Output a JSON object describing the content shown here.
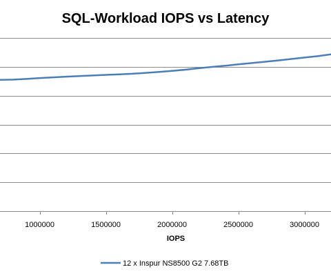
{
  "chart_data": {
    "type": "line",
    "title": "SQL-Workload IOPS vs Latency",
    "xlabel": "IOPS",
    "ylabel": "",
    "xlim": [
      700000,
      3200000
    ],
    "ylim": [
      0,
      1.2
    ],
    "x_ticks": [
      1000000,
      1500000,
      2000000,
      2500000,
      3000000
    ],
    "x_tick_labels": [
      "1000000",
      "1500000",
      "2000000",
      "2500000",
      "3000000"
    ],
    "y_gridlines": [
      0,
      0.2,
      0.4,
      0.6,
      0.8,
      1.0,
      1.2
    ],
    "grid": "horizontal",
    "legend": "bottom",
    "series": [
      {
        "name": "12 x Inspur NS8500 G2 7.68TB",
        "color": "#4a7ebb",
        "x": [
          700000,
          800000,
          900000,
          1000000,
          1100000,
          1200000,
          1300000,
          1400000,
          1500000,
          1600000,
          1700000,
          1800000,
          1900000,
          2000000,
          2100000,
          2200000,
          2300000,
          2400000,
          2500000,
          2600000,
          2700000,
          2800000,
          2900000,
          3000000,
          3100000,
          3200000
        ],
        "y": [
          0.91,
          0.911,
          0.916,
          0.922,
          0.927,
          0.932,
          0.936,
          0.94,
          0.944,
          0.948,
          0.952,
          0.958,
          0.965,
          0.972,
          0.98,
          0.99,
          0.999,
          1.008,
          1.017,
          1.026,
          1.035,
          1.044,
          1.054,
          1.064,
          1.074,
          1.086
        ]
      }
    ]
  }
}
